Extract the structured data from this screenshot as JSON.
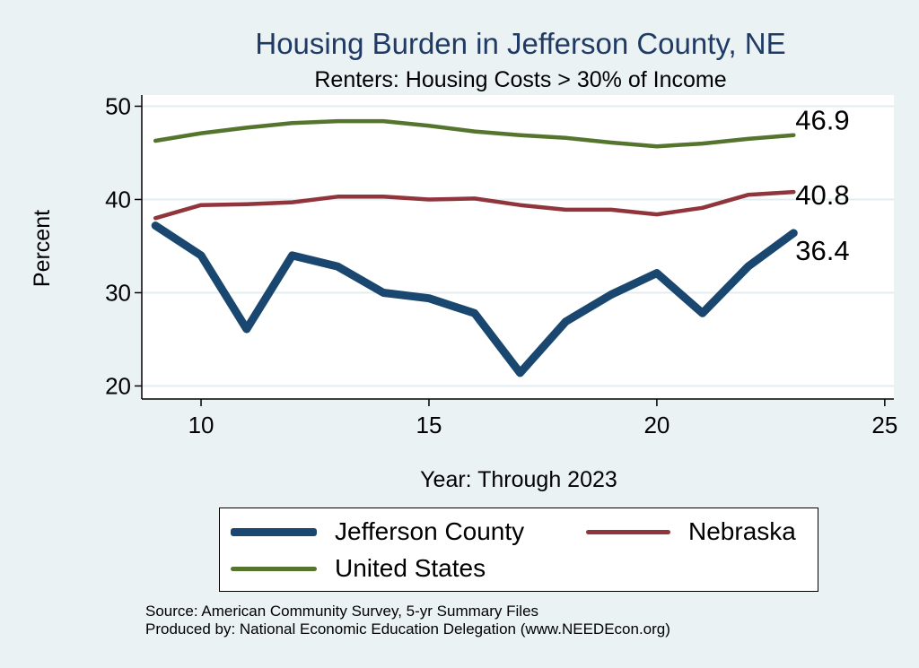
{
  "chart_data": {
    "type": "line",
    "title": "Housing Burden in Jefferson County, NE",
    "subtitle": "Renters: Housing Costs > 30% of Income",
    "xlabel": "Year: Through 2023",
    "ylabel": "Percent",
    "xlim": [
      8.7,
      25.2
    ],
    "ylim": [
      18.6,
      51.2
    ],
    "x_ticks": [
      10,
      15,
      20,
      25
    ],
    "y_ticks": [
      20,
      30,
      40,
      50
    ],
    "grid": true,
    "series": [
      {
        "name": "Jefferson County",
        "color": "#1a476f",
        "width": 9,
        "x": [
          9,
          10,
          11,
          12,
          13,
          14,
          15,
          16,
          17,
          18,
          19,
          20,
          21,
          22,
          23
        ],
        "values": [
          37.2,
          34.0,
          26.1,
          34.0,
          32.8,
          30.0,
          29.4,
          27.8,
          21.4,
          26.9,
          29.8,
          32.1,
          27.8,
          32.8,
          36.4
        ],
        "end_label": "36.4"
      },
      {
        "name": "Nebraska",
        "color": "#90353b",
        "width": 4.5,
        "x": [
          9,
          10,
          11,
          12,
          13,
          14,
          15,
          16,
          17,
          18,
          19,
          20,
          21,
          22,
          23
        ],
        "values": [
          38.0,
          39.4,
          39.5,
          39.7,
          40.3,
          40.3,
          40.0,
          40.1,
          39.4,
          38.9,
          38.9,
          38.4,
          39.1,
          40.5,
          40.8
        ],
        "end_label": "40.8"
      },
      {
        "name": "United States",
        "color": "#55752f",
        "width": 4.5,
        "x": [
          9,
          10,
          11,
          12,
          13,
          14,
          15,
          16,
          17,
          18,
          19,
          20,
          21,
          22,
          23
        ],
        "values": [
          46.3,
          47.1,
          47.7,
          48.2,
          48.4,
          48.4,
          47.9,
          47.3,
          46.9,
          46.6,
          46.1,
          45.7,
          46.0,
          46.5,
          46.9
        ],
        "end_label": "46.9"
      }
    ]
  },
  "legend": {
    "items": [
      {
        "label": "Jefferson County",
        "color": "#1a476f"
      },
      {
        "label": "Nebraska",
        "color": "#90353b"
      },
      {
        "label": "United States",
        "color": "#55752f"
      }
    ]
  },
  "notes": {
    "source": "Source: American Community Survey, 5-yr Summary Files",
    "produced": "Produced by: National Economic Education Delegation (www.NEEDEcon.org)"
  }
}
